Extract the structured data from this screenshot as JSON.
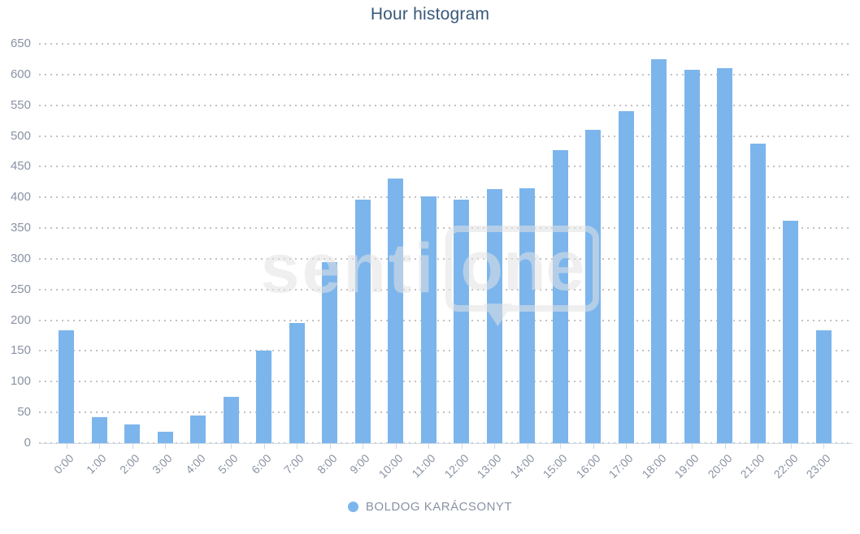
{
  "title": "Hour histogram",
  "legend": {
    "label": "BOLDOG KARÁCSONYT"
  },
  "watermark": {
    "text_left": "senti",
    "text_right": "one"
  },
  "colors": {
    "bar": "#7cb5ec",
    "title": "#39587a",
    "axis_label": "#8a92a4",
    "grid_dot": "#c2c2c2",
    "axis_line": "#cdd9e4",
    "legend_text": "#8a92a4",
    "watermark": "#e3e3e3"
  },
  "chart_data": {
    "type": "bar",
    "title": "Hour histogram",
    "categories": [
      "0:00",
      "1:00",
      "2:00",
      "3:00",
      "4:00",
      "5:00",
      "6:00",
      "7:00",
      "8:00",
      "9:00",
      "10:00",
      "11:00",
      "12:00",
      "13:00",
      "14:00",
      "15:00",
      "16:00",
      "17:00",
      "18:00",
      "19:00",
      "20:00",
      "21:00",
      "22:00",
      "23:00"
    ],
    "series": [
      {
        "name": "BOLDOG KARÁCSONYT",
        "values": [
          183,
          42,
          30,
          18,
          45,
          75,
          151,
          195,
          295,
          397,
          431,
          402,
          397,
          413,
          415,
          477,
          510,
          540,
          625,
          608,
          611,
          487,
          362,
          183
        ]
      }
    ],
    "ylim": [
      0,
      650
    ],
    "ytick_step": 50,
    "xlabel": "",
    "ylabel": "",
    "grid": "horizontal-dotted",
    "legend_position": "bottom-center",
    "x_tick_label_rotation": -45
  }
}
